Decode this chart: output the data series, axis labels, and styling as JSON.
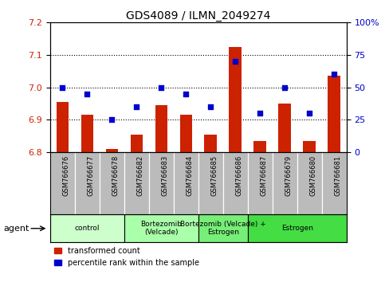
{
  "title": "GDS4089 / ILMN_2049274",
  "samples": [
    "GSM766676",
    "GSM766677",
    "GSM766678",
    "GSM766682",
    "GSM766683",
    "GSM766684",
    "GSM766685",
    "GSM766686",
    "GSM766687",
    "GSM766679",
    "GSM766680",
    "GSM766681"
  ],
  "bar_values": [
    6.955,
    6.915,
    6.81,
    6.855,
    6.945,
    6.915,
    6.855,
    7.125,
    6.835,
    6.95,
    6.835,
    7.035
  ],
  "dot_values": [
    50,
    45,
    25,
    35,
    50,
    45,
    35,
    70,
    30,
    50,
    30,
    60
  ],
  "bar_base": 6.8,
  "ylim_left": [
    6.8,
    7.2
  ],
  "ylim_right": [
    0,
    100
  ],
  "yticks_left": [
    6.8,
    6.9,
    7.0,
    7.1,
    7.2
  ],
  "yticks_right": [
    0,
    25,
    50,
    75,
    100
  ],
  "bar_color": "#cc2200",
  "dot_color": "#0000cc",
  "groups": [
    {
      "label": "control",
      "start": 0,
      "end": 3,
      "color": "#ccffcc"
    },
    {
      "label": "Bortezomib\n(Velcade)",
      "start": 3,
      "end": 6,
      "color": "#aaffaa"
    },
    {
      "label": "Bortezomib (Velcade) +\nEstrogen",
      "start": 6,
      "end": 8,
      "color": "#77ee77"
    },
    {
      "label": "Estrogen",
      "start": 8,
      "end": 12,
      "color": "#44dd44"
    }
  ],
  "legend_bar_label": "transformed count",
  "legend_dot_label": "percentile rank within the sample",
  "tick_label_color_left": "#cc2200",
  "tick_label_color_right": "#0000cc",
  "background_plot": "#ffffff",
  "background_xaxis": "#bbbbbb",
  "n_samples": 12
}
